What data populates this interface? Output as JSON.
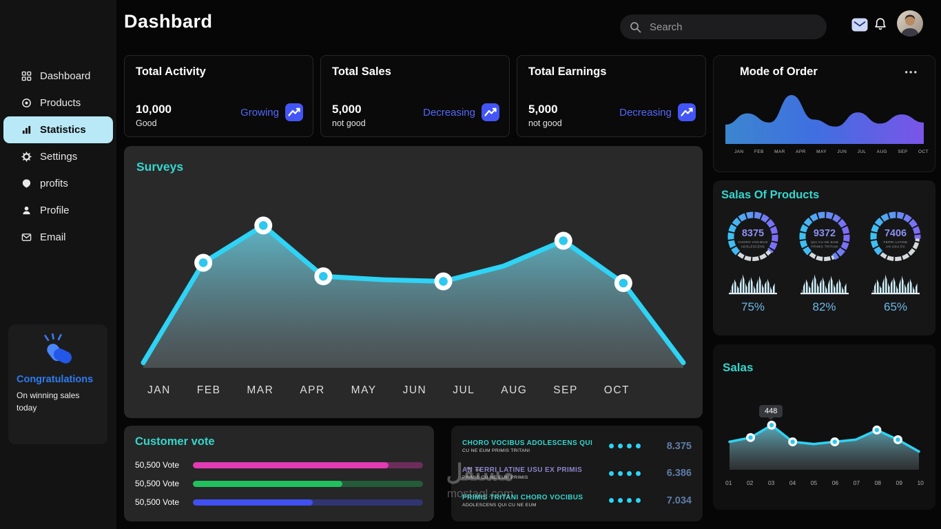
{
  "app": {
    "title": "Dashbard",
    "watermark_line1": "مستقل",
    "watermark_line2": "mostaql.com"
  },
  "header": {
    "search_placeholder": "Search"
  },
  "sidebar": {
    "items": [
      {
        "label": "Dashboard"
      },
      {
        "label": "Products"
      },
      {
        "label": "Statistics",
        "active": true
      },
      {
        "label": "Settings"
      },
      {
        "label": "profits"
      },
      {
        "label": "Profile"
      },
      {
        "label": "Email"
      }
    ],
    "congrats": {
      "title": "Congratulations",
      "subtitle": "On winning sales today"
    }
  },
  "stats": [
    {
      "title": "Total Activity",
      "value": "10,000",
      "note": "Good",
      "trend": "Growing"
    },
    {
      "title": "Total Sales",
      "value": "5,000",
      "note": "not good",
      "trend": "Decreasing"
    },
    {
      "title": "Total Earnings",
      "value": "5,000",
      "note": "not good",
      "trend": "Decreasing"
    }
  ],
  "surveys": {
    "title": "Surveys"
  },
  "mode_of_order": {
    "title": "Mode of Order",
    "menu": "•••"
  },
  "salas_of_products": {
    "title": "Salas Of Products",
    "items": [
      {
        "value": "8375",
        "caption1": "CHORO VOCIBUS",
        "caption2": "ADOLESCENS",
        "percent": "75%",
        "percent_num": 75
      },
      {
        "value": "9372",
        "caption1": "QUI CU NE EUM",
        "caption2": "PRIMIS TRITANI",
        "percent": "82%",
        "percent_num": 82
      },
      {
        "value": "7406",
        "caption1": "FERRI LATINE",
        "caption2": "AN USU EX",
        "percent": "65%",
        "percent_num": 65
      }
    ]
  },
  "salas": {
    "title": "Salas"
  },
  "customer_vote": {
    "title": "Customer vote",
    "rows": [
      {
        "label": "50,500 Vote",
        "percent": 85,
        "color": "#e23bb4",
        "track_color": "rgba(226,59,180,0.38)"
      },
      {
        "label": "50,500 Vote",
        "percent": 65,
        "color": "#22c15f",
        "track_color": "rgba(34,193,95,0.35)"
      },
      {
        "label": "50,500 Vote",
        "percent": 52,
        "color": "#4150f0",
        "track_color": "rgba(65,80,240,0.38)"
      }
    ]
  },
  "orders": {
    "items": [
      {
        "title": "CHORO VOCIBUS ADOLESCENS QUI",
        "subtitle": "CU NE EUM PRIMIS TRITANI",
        "value": "8.375",
        "dots": 4
      },
      {
        "title": "AN TERRI LATINE USU EX PRIMIS",
        "subtitle": "PRIMIS CU NE EUM PRIMIS",
        "value": "6.386",
        "dots": 4
      },
      {
        "title": "PRIMIS TRITANI CHORO VOCIBUS",
        "subtitle": "ADOLESCENS QUI CU NE EUM",
        "value": "7.034",
        "dots": 4
      }
    ]
  },
  "chart_data": [
    {
      "name": "surveys",
      "type": "area",
      "title": "Surveys",
      "x": [
        "JAN",
        "FEB",
        "MAR",
        "APR",
        "MAY",
        "JUN",
        "JUL",
        "AUG",
        "SEP",
        "OCT"
      ],
      "values": [
        3,
        62,
        84,
        54,
        52,
        51,
        60,
        75,
        50,
        3
      ],
      "markers": [
        1,
        2,
        3,
        5,
        7,
        8
      ],
      "scale": "relative 0-100 (estimated from pixels, no y axis shown)",
      "line_color": "#2ed3f5",
      "legend": "none",
      "grid": false
    },
    {
      "name": "mode_of_order",
      "type": "area",
      "title": "Mode of Order",
      "x": [
        "JAN",
        "FEB",
        "MAR",
        "APR",
        "MAY",
        "JUN",
        "JUL",
        "AUG",
        "SEP",
        "OCT"
      ],
      "values": [
        38,
        60,
        42,
        96,
        48,
        34,
        62,
        40,
        58,
        42
      ],
      "scale": "relative 0-100 (estimated from pixels, no y axis shown)",
      "colors": [
        "#3c86cf",
        "#3f6fe0",
        "#7a55e8"
      ],
      "legend": "none",
      "grid": false
    },
    {
      "name": "salas",
      "type": "line",
      "title": "Salas",
      "x": [
        "01",
        "02",
        "03",
        "04",
        "05",
        "06",
        "07",
        "08",
        "09",
        "10"
      ],
      "values": [
        52,
        60,
        83,
        52,
        48,
        52,
        56,
        74,
        56,
        34
      ],
      "markers": [
        1,
        2,
        3,
        5,
        7,
        8
      ],
      "tooltip": {
        "index": 2,
        "label": "448"
      },
      "scale": "relative 0-100 (estimated from pixels, no y axis shown)",
      "line_color": "#2ed3f5",
      "legend": "none",
      "grid": false
    },
    {
      "name": "product_sparkline",
      "type": "area",
      "title": "product mini trend",
      "values": [
        12,
        70,
        22,
        95,
        30,
        82,
        18,
        88,
        26,
        72,
        15,
        60
      ],
      "scale": "relative 0-100 (estimated from pixels)"
    }
  ]
}
